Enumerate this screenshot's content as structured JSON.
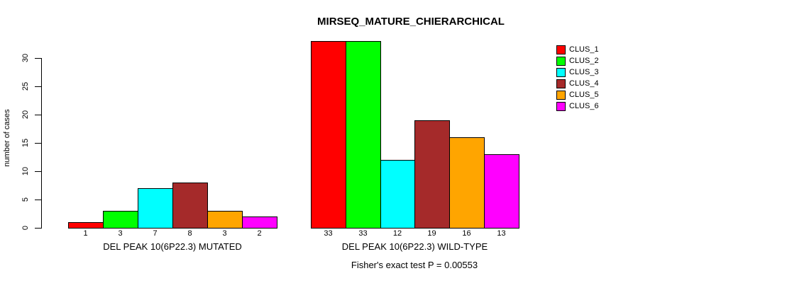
{
  "chart_data": {
    "type": "bar",
    "title": "MIRSEQ_MATURE_CHIERARCHICAL",
    "ylabel": "number of cases",
    "xlabel": "",
    "ylim": [
      0,
      33
    ],
    "yticks": [
      0,
      5,
      10,
      15,
      20,
      25,
      30
    ],
    "grid": false,
    "legend_position": "right",
    "bar_value_labels_shown": true,
    "categories": [
      "DEL PEAK 10(6P22.3) MUTATED",
      "DEL PEAK 10(6P22.3) WILD-TYPE"
    ],
    "series": [
      {
        "name": "CLUS_1",
        "color": "#ff0000",
        "values": [
          1,
          33
        ]
      },
      {
        "name": "CLUS_2",
        "color": "#00ff00",
        "values": [
          3,
          33
        ]
      },
      {
        "name": "CLUS_3",
        "color": "#00ffff",
        "values": [
          7,
          12
        ]
      },
      {
        "name": "CLUS_4",
        "color": "#a52a2a",
        "values": [
          8,
          19
        ]
      },
      {
        "name": "CLUS_5",
        "color": "#ffa500",
        "values": [
          3,
          16
        ]
      },
      {
        "name": "CLUS_6",
        "color": "#ff00ff",
        "values": [
          2,
          13
        ]
      }
    ],
    "annotation": "Fisher's exact test P = 0.00553",
    "axis_color": "#000000",
    "background_color": "#ffffff"
  }
}
